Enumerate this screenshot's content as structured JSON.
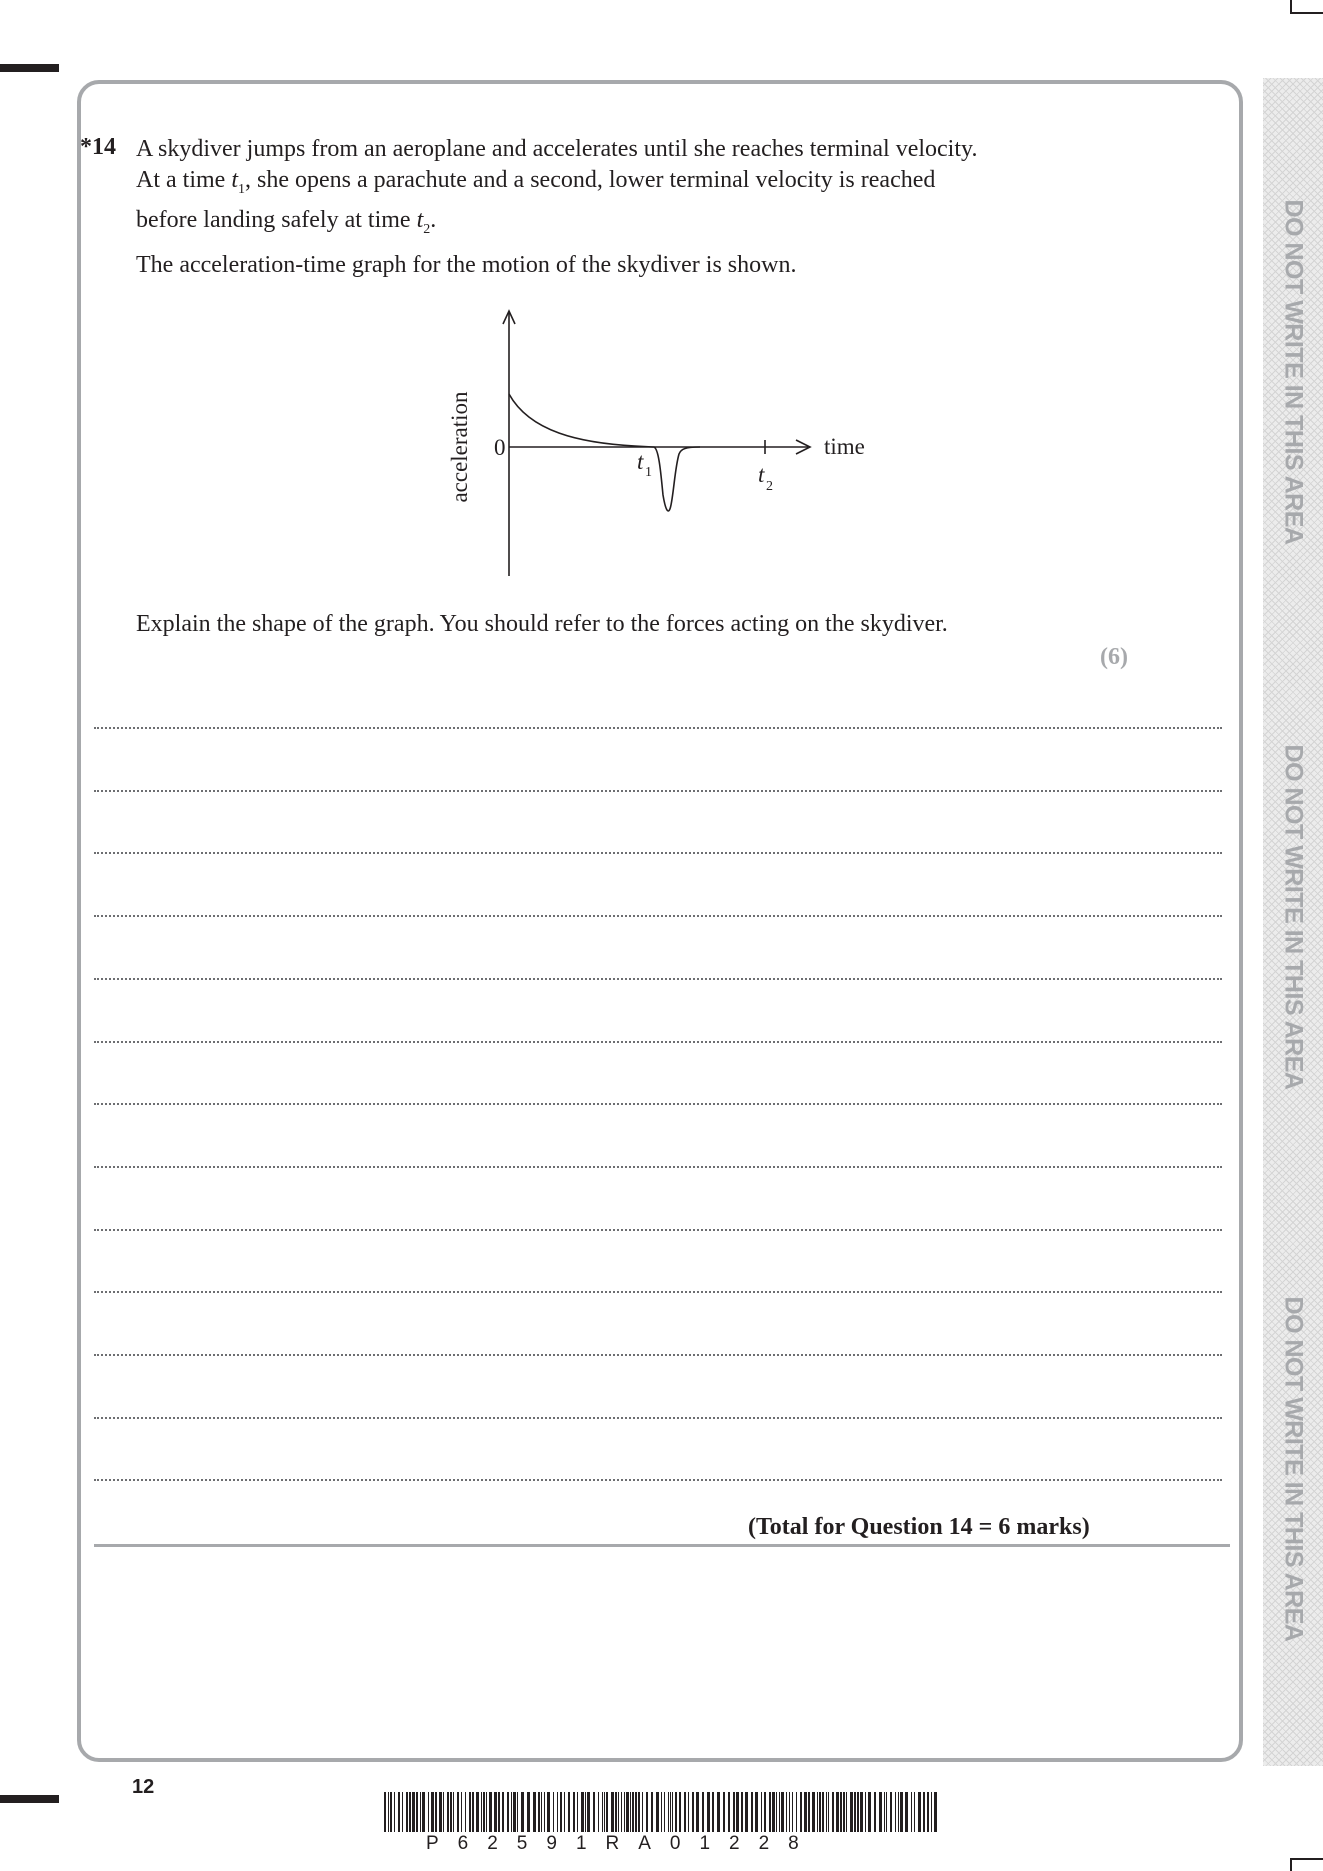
{
  "question": {
    "number": "*14",
    "line1": "A skydiver jumps from an aeroplane and accelerates until she reaches terminal velocity.",
    "line2_pre": "At a time ",
    "t1_var": "t",
    "t1_sub": "1",
    "line2_post": ", she opens a parachute and a second, lower terminal velocity is reached",
    "line3_pre": "before landing safely at time ",
    "t2_var": "t",
    "t2_sub": "2",
    "line3_post": ".",
    "intro": "The acceleration-time graph for the motion of the skydiver is shown.",
    "instruction": "Explain the shape of the graph. You should refer to the forces acting on the skydiver.",
    "marks": "(6)"
  },
  "graph": {
    "y_axis_label": "acceleration",
    "x_axis_label": "time",
    "origin_label": "0",
    "t1_var": "t",
    "t1_sub": "1",
    "t2_var": "t",
    "t2_sub": "2"
  },
  "answer_lines": 13,
  "total": "(Total for Question 14 = 6 marks)",
  "margin_text": "DO NOT WRITE IN THIS AREA",
  "footer": {
    "page_number": "12",
    "barcode_text": "P62591RA01228"
  }
}
